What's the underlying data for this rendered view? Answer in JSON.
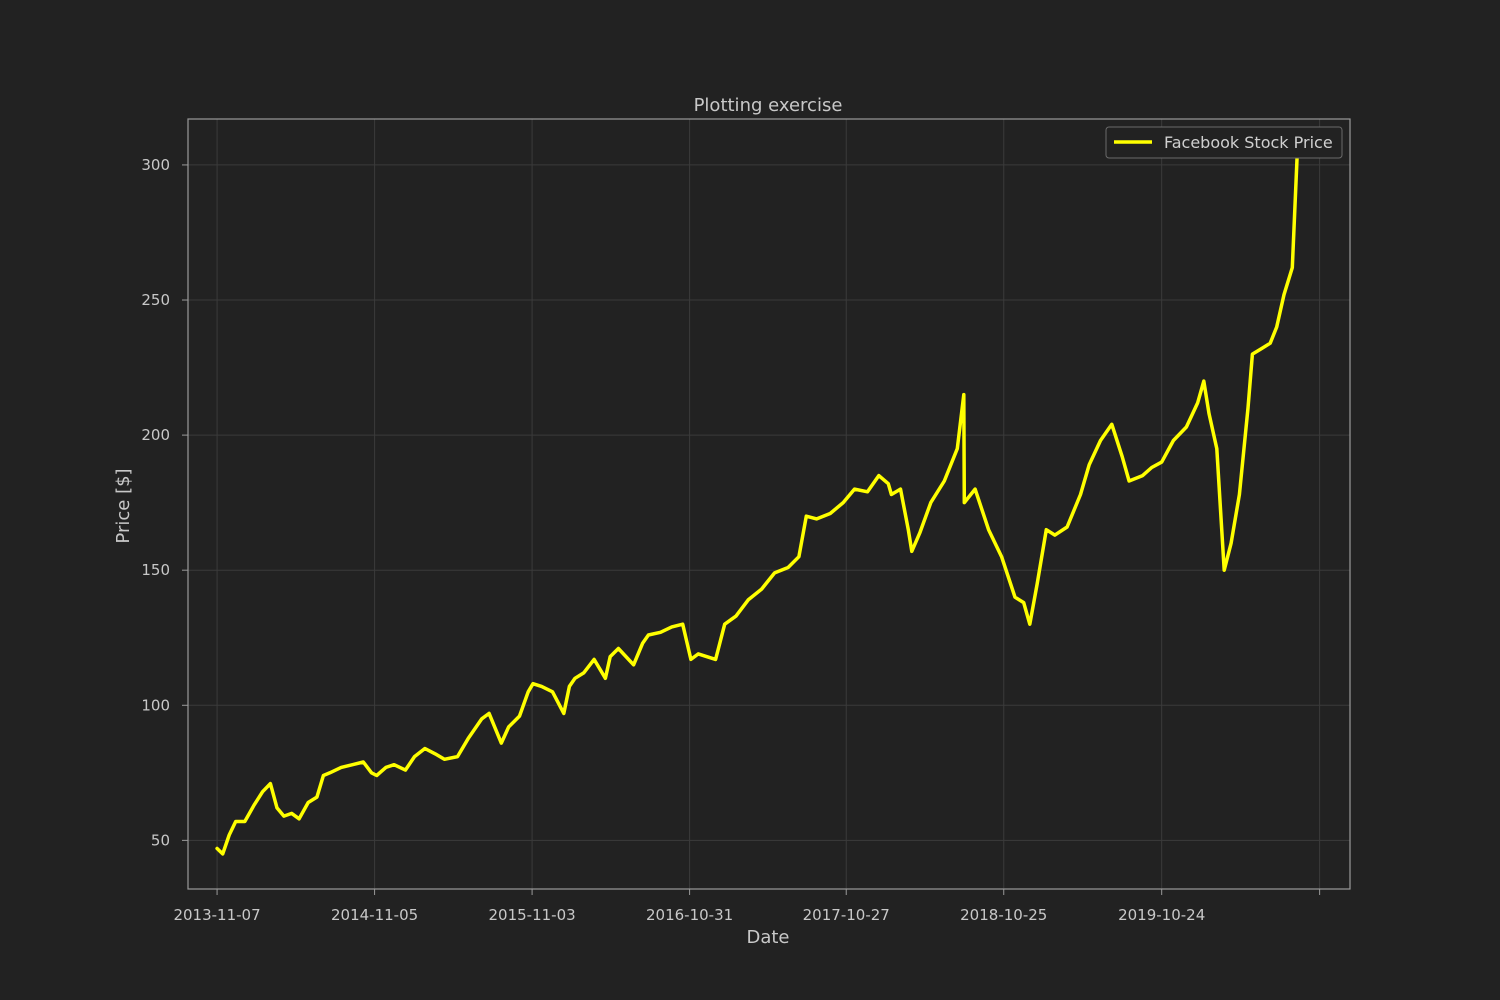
{
  "chart_data": {
    "type": "line",
    "title": "Plotting exercise",
    "xlabel": "Date",
    "ylabel": "Price [$]",
    "x_tick_labels": [
      "2013-11-07",
      "2014-11-05",
      "2015-11-03",
      "2016-10-31",
      "2017-10-27",
      "2018-10-25",
      "2019-10-24"
    ],
    "y_ticks": [
      50,
      100,
      150,
      200,
      250,
      300
    ],
    "xlim": [
      "2013-09-01",
      "2020-12-31"
    ],
    "ylim": [
      32,
      317
    ],
    "grid": true,
    "legend_position": "top-right",
    "series": [
      {
        "name": "Facebook Stock Price",
        "color": "#ffff00",
        "x": [
          "2013-11-07",
          "2013-11-20",
          "2013-12-05",
          "2013-12-20",
          "2014-01-10",
          "2014-01-31",
          "2014-02-20",
          "2014-03-10",
          "2014-03-25",
          "2014-04-10",
          "2014-04-28",
          "2014-05-15",
          "2014-06-05",
          "2014-06-25",
          "2014-07-10",
          "2014-07-25",
          "2014-08-20",
          "2014-09-15",
          "2014-10-10",
          "2014-10-29",
          "2014-11-10",
          "2014-12-01",
          "2014-12-20",
          "2015-01-15",
          "2015-02-05",
          "2015-03-01",
          "2015-03-25",
          "2015-04-15",
          "2015-05-15",
          "2015-06-10",
          "2015-07-10",
          "2015-07-27",
          "2015-08-24",
          "2015-09-10",
          "2015-10-05",
          "2015-10-25",
          "2015-11-05",
          "2015-11-25",
          "2015-12-20",
          "2016-01-15",
          "2016-01-28",
          "2016-02-10",
          "2016-03-01",
          "2016-03-25",
          "2016-04-20",
          "2016-05-01",
          "2016-05-20",
          "2016-06-24",
          "2016-07-15",
          "2016-07-28",
          "2016-08-25",
          "2016-09-20",
          "2016-10-15",
          "2016-11-03",
          "2016-11-20",
          "2016-12-30",
          "2017-01-20",
          "2017-02-15",
          "2017-03-15",
          "2017-04-15",
          "2017-05-15",
          "2017-06-15",
          "2017-07-10",
          "2017-07-27",
          "2017-08-20",
          "2017-09-20",
          "2017-10-20",
          "2017-11-15",
          "2017-12-15",
          "2018-01-10",
          "2018-02-01",
          "2018-02-08",
          "2018-03-01",
          "2018-03-19",
          "2018-03-27",
          "2018-04-15",
          "2018-05-10",
          "2018-06-10",
          "2018-07-10",
          "2018-07-25",
          "2018-07-26",
          "2018-08-20",
          "2018-09-20",
          "2018-10-20",
          "2018-11-20",
          "2018-12-10",
          "2018-12-24",
          "2019-01-10",
          "2019-01-31",
          "2019-02-20",
          "2019-03-20",
          "2019-04-20",
          "2019-05-10",
          "2019-06-05",
          "2019-07-01",
          "2019-07-25",
          "2019-08-10",
          "2019-09-10",
          "2019-10-01",
          "2019-10-24",
          "2019-11-20",
          "2019-12-20",
          "2020-01-15",
          "2020-01-29",
          "2020-02-10",
          "2020-02-28",
          "2020-03-16",
          "2020-04-01",
          "2020-04-20",
          "2020-05-10",
          "2020-05-20",
          "2020-06-10",
          "2020-06-30",
          "2020-07-15",
          "2020-08-01",
          "2020-08-20",
          "2020-08-31"
        ],
        "y": [
          47,
          45,
          52,
          57,
          57,
          63,
          68,
          71,
          62,
          59,
          60,
          58,
          64,
          66,
          74,
          75,
          77,
          78,
          79,
          75,
          74,
          77,
          78,
          76,
          81,
          84,
          82,
          80,
          81,
          88,
          95,
          97,
          86,
          92,
          96,
          105,
          108,
          107,
          105,
          97,
          107,
          110,
          112,
          117,
          110,
          118,
          121,
          115,
          123,
          126,
          127,
          129,
          130,
          117,
          119,
          117,
          130,
          133,
          139,
          143,
          149,
          151,
          155,
          170,
          169,
          171,
          175,
          180,
          179,
          185,
          182,
          178,
          180,
          165,
          157,
          164,
          175,
          183,
          195,
          215,
          175,
          180,
          165,
          155,
          140,
          138,
          130,
          145,
          165,
          163,
          166,
          178,
          189,
          198,
          204,
          192,
          183,
          185,
          188,
          190,
          198,
          203,
          212,
          220,
          208,
          195,
          150,
          160,
          178,
          210,
          230,
          232,
          234,
          240,
          252,
          262,
          303
        ]
      }
    ]
  }
}
